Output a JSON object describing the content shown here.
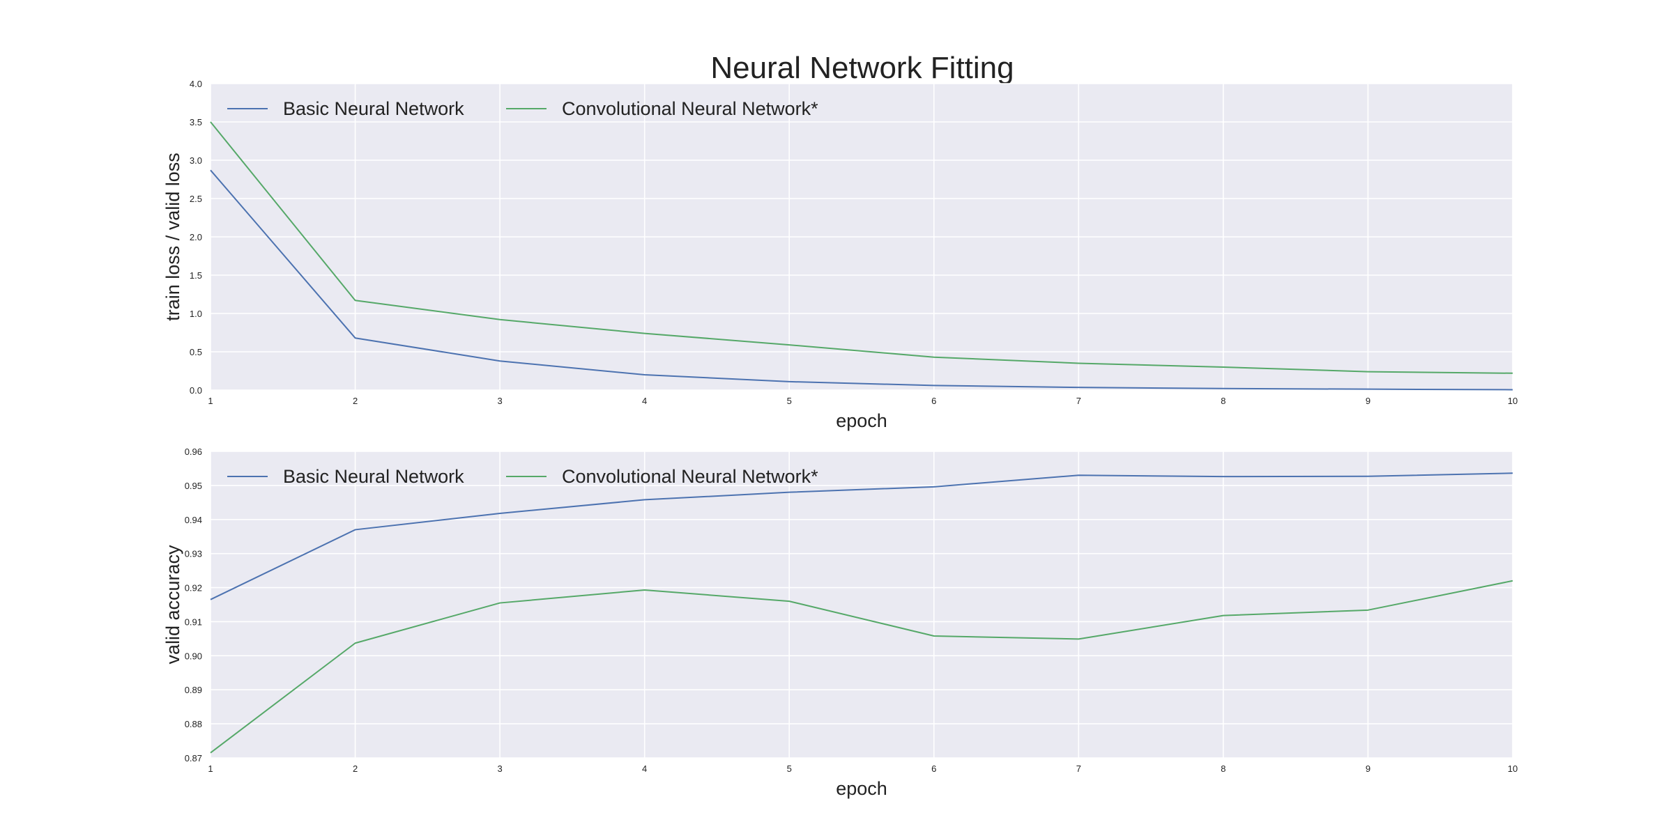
{
  "figure": {
    "title": "Neural Network Fitting"
  },
  "colors": {
    "background": "#eaeaf2",
    "grid": "#ffffff",
    "basic": "#4c72b0",
    "conv": "#55a868"
  },
  "chart_data": [
    {
      "type": "line",
      "x": [
        1,
        2,
        3,
        4,
        5,
        6,
        7,
        8,
        9,
        10
      ],
      "xticks": [
        "1",
        "2",
        "3",
        "4",
        "5",
        "6",
        "7",
        "8",
        "9",
        "10"
      ],
      "yticks": [
        "0.0",
        "0.5",
        "1.0",
        "1.5",
        "2.0",
        "2.5",
        "3.0",
        "3.5",
        "4.0"
      ],
      "xlabel": "epoch",
      "ylabel": "train loss / valid loss",
      "xlim": [
        1,
        10
      ],
      "ylim": [
        0,
        4
      ],
      "grid": true,
      "legend": "top-left",
      "series": [
        {
          "name": "Basic Neural Network",
          "values": [
            2.87,
            0.68,
            0.38,
            0.2,
            0.11,
            0.06,
            0.035,
            0.02,
            0.012,
            0.005
          ]
        },
        {
          "name": "Convolutional Neural Network*",
          "values": [
            3.5,
            1.17,
            0.92,
            0.74,
            0.59,
            0.43,
            0.35,
            0.3,
            0.24,
            0.22
          ]
        }
      ]
    },
    {
      "type": "line",
      "x": [
        1,
        2,
        3,
        4,
        5,
        6,
        7,
        8,
        9,
        10
      ],
      "xticks": [
        "1",
        "2",
        "3",
        "4",
        "5",
        "6",
        "7",
        "8",
        "9",
        "10"
      ],
      "yticks": [
        "0.87",
        "0.88",
        "0.89",
        "0.90",
        "0.91",
        "0.92",
        "0.93",
        "0.94",
        "0.95",
        "0.96"
      ],
      "xlabel": "epoch",
      "ylabel": "valid accuracy",
      "xlim": [
        1,
        10
      ],
      "ylim": [
        0.87,
        0.96
      ],
      "grid": true,
      "legend": "top-left",
      "series": [
        {
          "name": "Basic Neural Network",
          "values": [
            0.9165,
            0.937,
            0.9418,
            0.9458,
            0.948,
            0.9496,
            0.953,
            0.9526,
            0.9527,
            0.9536
          ]
        },
        {
          "name": "Convolutional Neural Network*",
          "values": [
            0.8715,
            0.9037,
            0.9155,
            0.9193,
            0.916,
            0.9058,
            0.9049,
            0.9118,
            0.9134,
            0.922
          ]
        }
      ]
    }
  ]
}
